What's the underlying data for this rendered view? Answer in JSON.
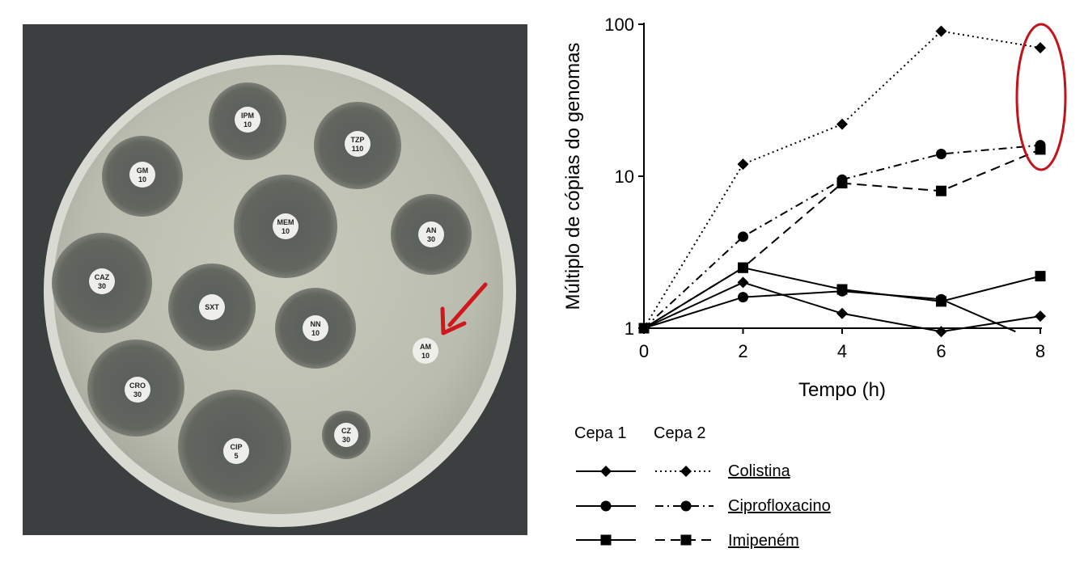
{
  "photo": {
    "disks": [
      {
        "name": "IPM",
        "dose": "10"
      },
      {
        "name": "TZP",
        "dose": "110"
      },
      {
        "name": "GM",
        "dose": "10"
      },
      {
        "name": "MEM",
        "dose": "10"
      },
      {
        "name": "AN",
        "dose": "30"
      },
      {
        "name": "CAZ",
        "dose": "30"
      },
      {
        "name": "SXT",
        "dose": ""
      },
      {
        "name": "NN",
        "dose": "10"
      },
      {
        "name": "AM",
        "dose": "10"
      },
      {
        "name": "CRO",
        "dose": "30"
      },
      {
        "name": "CIP",
        "dose": "5"
      },
      {
        "name": "CZ",
        "dose": "30"
      }
    ],
    "arrow_color": "#d0181c"
  },
  "chart_data": {
    "type": "line",
    "title": "",
    "xlabel": "Tempo (h)",
    "ylabel": "Múltiplo de cópias do genomas",
    "xlim": [
      0,
      8
    ],
    "ylim": [
      1,
      100
    ],
    "yscale": "log",
    "x_ticks": [
      "0",
      "2",
      "4",
      "6",
      "8"
    ],
    "y_ticks": [
      "1",
      "10",
      "100"
    ],
    "x": [
      0,
      2,
      4,
      6,
      8
    ],
    "legend_headers": [
      "Cepa 1",
      "Cepa 2"
    ],
    "legend_labels": [
      "Colistina",
      "Ciprofloxacino",
      "Imipeném"
    ],
    "series": [
      {
        "strain": "Cepa 1",
        "drug": "Colistina",
        "marker": "diamond",
        "line": "solid",
        "x": [
          0,
          2,
          4,
          6,
          8
        ],
        "values": [
          1,
          2.0,
          1.25,
          0.95,
          1.2
        ]
      },
      {
        "strain": "Cepa 1",
        "drug": "Ciprofloxacino",
        "marker": "circle",
        "line": "solid",
        "x": [
          0,
          2,
          4,
          6,
          7.5
        ],
        "values": [
          1,
          1.6,
          1.75,
          1.55,
          0.95
        ]
      },
      {
        "strain": "Cepa 1",
        "drug": "Imipeném",
        "marker": "square",
        "line": "solid",
        "x": [
          0,
          2,
          4,
          6,
          8
        ],
        "values": [
          1,
          2.5,
          1.8,
          1.5,
          2.2
        ]
      },
      {
        "strain": "Cepa 2",
        "drug": "Colistina",
        "marker": "diamond",
        "line": "dotted",
        "x": [
          0,
          2,
          4,
          6,
          8
        ],
        "values": [
          1,
          12,
          22,
          90,
          70
        ]
      },
      {
        "strain": "Cepa 2",
        "drug": "Ciprofloxacino",
        "marker": "circle",
        "line": "dashdot",
        "x": [
          0,
          2,
          4,
          6,
          8
        ],
        "values": [
          1,
          4,
          9.5,
          14,
          16
        ]
      },
      {
        "strain": "Cepa 2",
        "drug": "Imipeném",
        "marker": "square",
        "line": "dashed",
        "x": [
          0,
          2,
          4,
          6,
          8
        ],
        "values": [
          1,
          2.5,
          9,
          8,
          15
        ]
      }
    ],
    "highlight_color": "#c0141a"
  }
}
